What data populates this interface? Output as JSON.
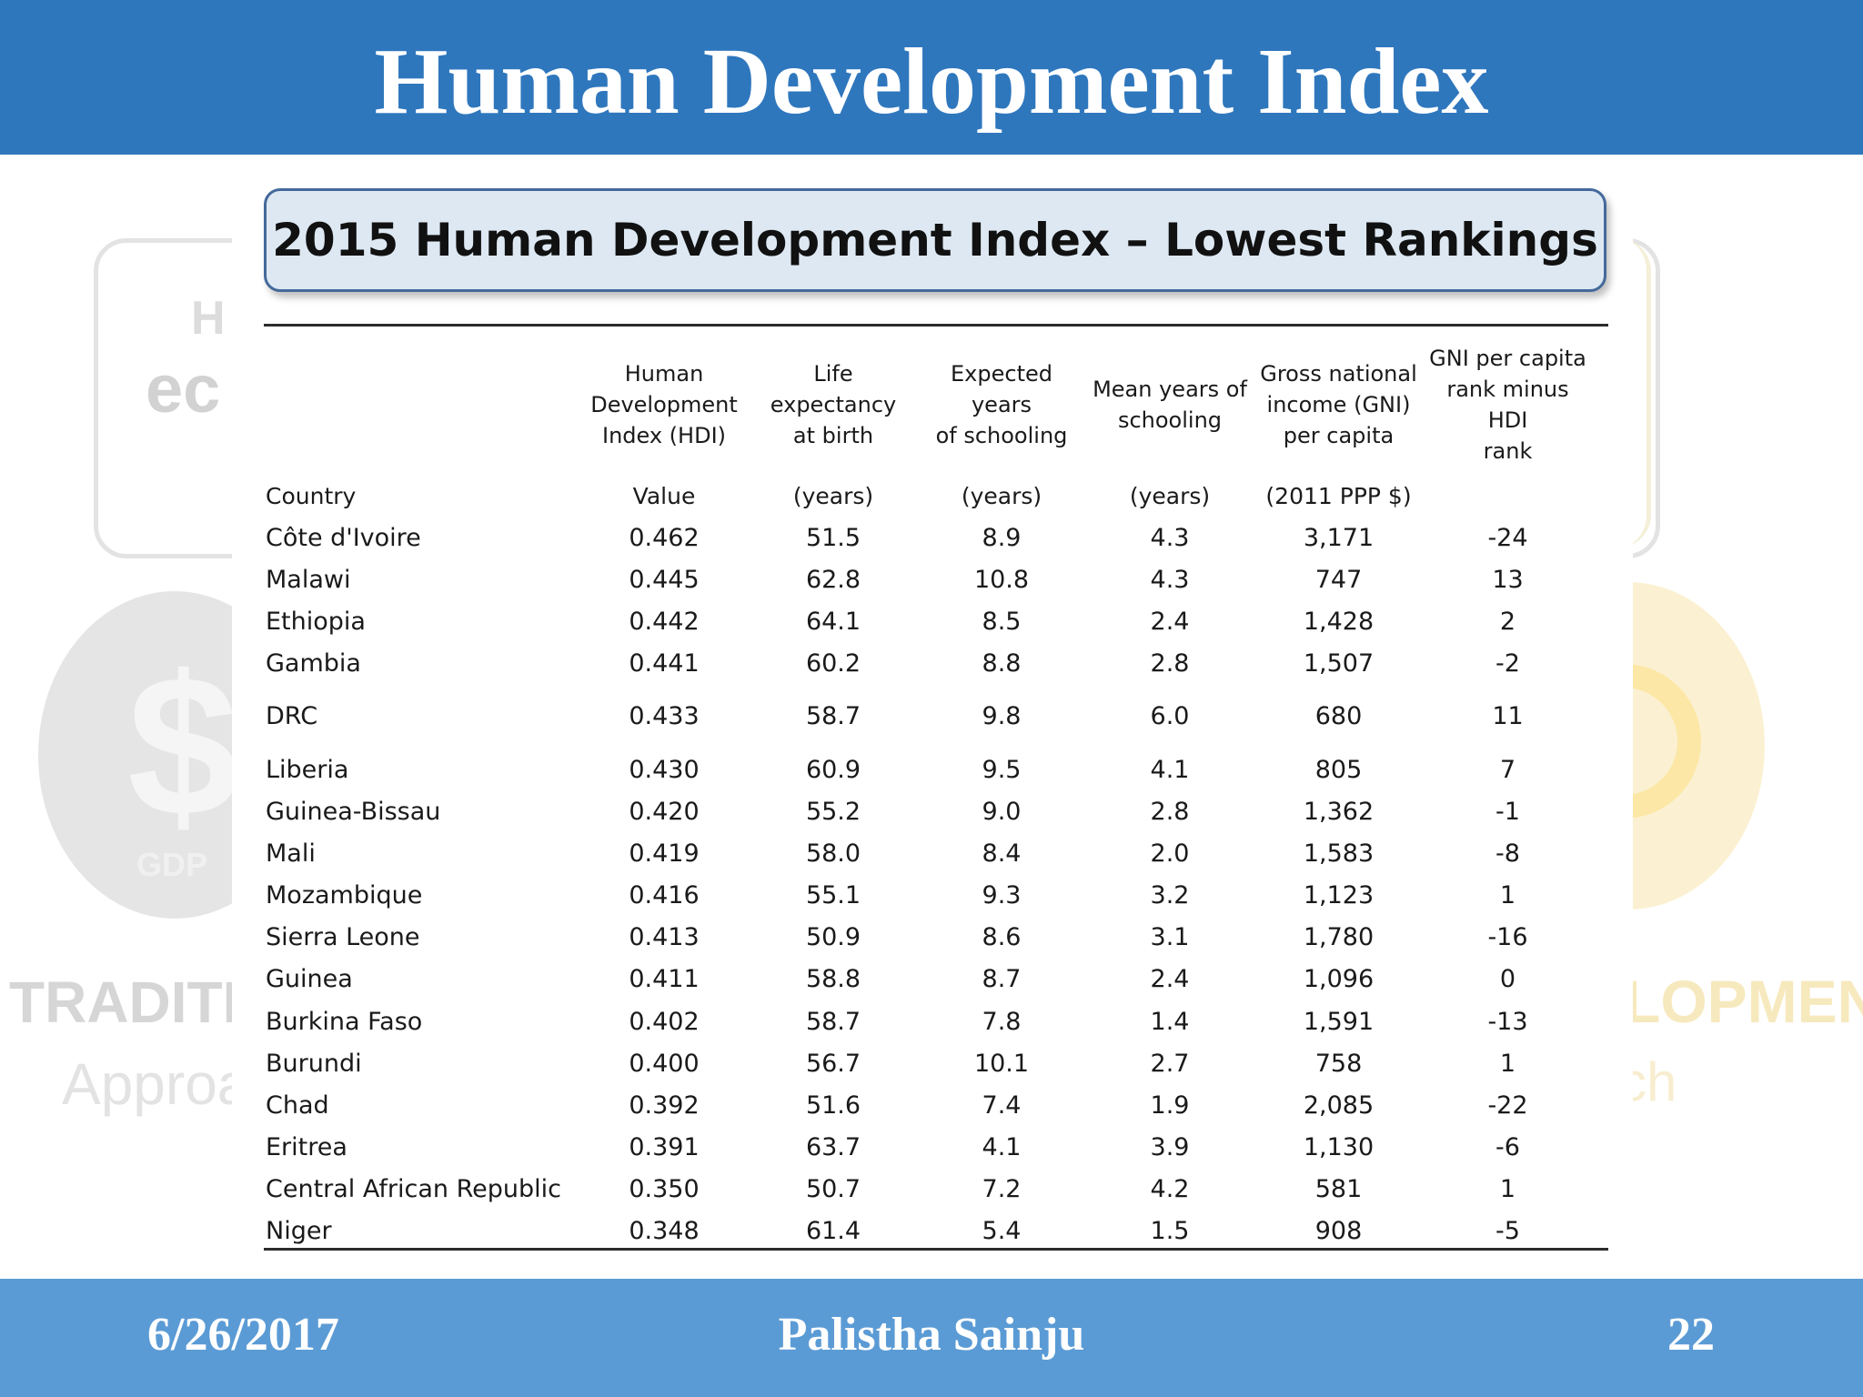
{
  "slide": {
    "title": "Human Development Index"
  },
  "background": {
    "card_text": "ec",
    "card_text_small": "H",
    "dollar_symbol": "$",
    "gdp_text": "GDP",
    "left_caption": "TRADITIO",
    "left_sub": "Approa",
    "right_caption": "LOPMENT",
    "right_sub": "ch"
  },
  "table": {
    "title": "2015 Human Development Index – Lowest Rankings",
    "columns": [
      {
        "header": "",
        "unit": "Country"
      },
      {
        "header": "Human\nDevelopment\nIndex (HDI)",
        "unit": "Value"
      },
      {
        "header": "Life expectancy\nat birth",
        "unit": "(years)"
      },
      {
        "header": "Expected years\nof schooling",
        "unit": "(years)"
      },
      {
        "header": "Mean years of\nschooling",
        "unit": "(years)"
      },
      {
        "header": "Gross national\nincome (GNI)\nper capita",
        "unit": "(2011 PPP $)"
      },
      {
        "header": "GNI per capita\nrank minus HDI\nrank",
        "unit": ""
      }
    ],
    "rows": [
      [
        "Côte d'Ivoire",
        "0.462",
        "51.5",
        "8.9",
        "4.3",
        "3,171",
        "-24"
      ],
      [
        "Malawi",
        "0.445",
        "62.8",
        "10.8",
        "4.3",
        "747",
        "13"
      ],
      [
        "Ethiopia",
        "0.442",
        "64.1",
        "8.5",
        "2.4",
        "1,428",
        "2"
      ],
      [
        "Gambia",
        "0.441",
        "60.2",
        "8.8",
        "2.8",
        "1,507",
        "-2"
      ],
      [
        "DRC",
        "0.433",
        "58.7",
        "9.8",
        "6.0",
        "680",
        "11"
      ],
      [
        "Liberia",
        "0.430",
        "60.9",
        "9.5",
        "4.1",
        "805",
        "7"
      ],
      [
        "Guinea-Bissau",
        "0.420",
        "55.2",
        "9.0",
        "2.8",
        "1,362",
        "-1"
      ],
      [
        "Mali",
        "0.419",
        "58.0",
        "8.4",
        "2.0",
        "1,583",
        "-8"
      ],
      [
        "Mozambique",
        "0.416",
        "55.1",
        "9.3",
        "3.2",
        "1,123",
        "1"
      ],
      [
        "Sierra Leone",
        "0.413",
        "50.9",
        "8.6",
        "3.1",
        "1,780",
        "-16"
      ],
      [
        "Guinea",
        "0.411",
        "58.8",
        "8.7",
        "2.4",
        "1,096",
        "0"
      ],
      [
        "Burkina Faso",
        "0.402",
        "58.7",
        "7.8",
        "1.4",
        "1,591",
        "-13"
      ],
      [
        "Burundi",
        "0.400",
        "56.7",
        "10.1",
        "2.7",
        "758",
        "1"
      ],
      [
        "Chad",
        "0.392",
        "51.6",
        "7.4",
        "1.9",
        "2,085",
        "-22"
      ],
      [
        "Eritrea",
        "0.391",
        "63.7",
        "4.1",
        "3.9",
        "1,130",
        "-6"
      ],
      [
        "Central African Republic",
        "0.350",
        "50.7",
        "7.2",
        "4.2",
        "581",
        "1"
      ],
      [
        "Niger",
        "0.348",
        "61.4",
        "5.4",
        "1.5",
        "908",
        "-5"
      ]
    ]
  },
  "footer": {
    "date": "6/26/2017",
    "author": "Palistha Sainju",
    "page": "22"
  },
  "colors": {
    "header_bar": "#2f77bd",
    "footer_bar": "#5b9bd5",
    "banner_fill": "#dde8f3",
    "banner_border": "#44699a"
  }
}
